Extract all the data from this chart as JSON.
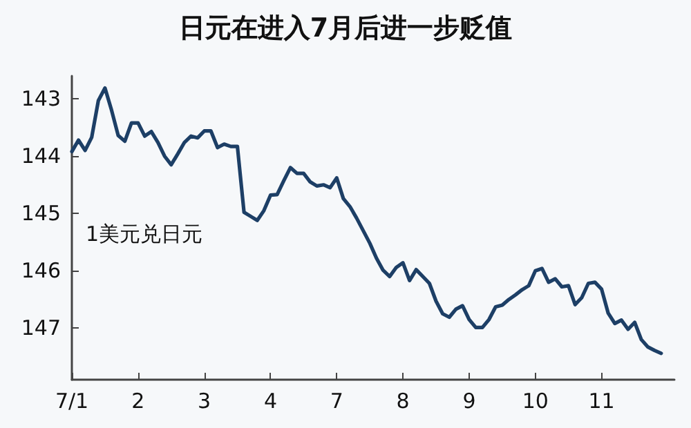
{
  "chart_data": {
    "type": "line",
    "title": "日元在进入7月后进一步贬值",
    "annotations": [
      "1美元兑日元"
    ],
    "categories": [
      "7/1",
      null,
      null,
      null,
      null,
      null,
      null,
      null,
      null,
      null,
      "2",
      null,
      null,
      null,
      null,
      null,
      null,
      null,
      null,
      null,
      "3",
      null,
      null,
      null,
      null,
      null,
      null,
      null,
      null,
      null,
      "4",
      null,
      null,
      null,
      null,
      null,
      null,
      null,
      null,
      null,
      "7",
      null,
      null,
      null,
      null,
      null,
      null,
      null,
      null,
      null,
      "8",
      null,
      null,
      null,
      null,
      null,
      null,
      null,
      null,
      null,
      "9",
      null,
      null,
      null,
      null,
      null,
      null,
      null,
      null,
      null,
      "10",
      null,
      null,
      null,
      null,
      null,
      null,
      null,
      null,
      null,
      "11",
      null,
      null,
      null,
      null,
      null,
      null,
      null,
      null,
      null,
      null,
      null
    ],
    "series": [
      {
        "color": "#1d3f66",
        "values": [
          143.92,
          143.72,
          143.9,
          143.67,
          143.03,
          142.81,
          143.2,
          143.64,
          143.74,
          143.42,
          143.42,
          143.65,
          143.57,
          143.76,
          144.0,
          144.15,
          143.96,
          143.76,
          143.65,
          143.68,
          143.56,
          143.56,
          143.85,
          143.79,
          143.83,
          143.83,
          144.98,
          145.05,
          145.12,
          144.95,
          144.68,
          144.67,
          144.43,
          144.2,
          144.3,
          144.3,
          144.45,
          144.52,
          144.5,
          144.55,
          144.38,
          144.74,
          144.88,
          145.08,
          145.3,
          145.52,
          145.78,
          145.99,
          146.1,
          145.94,
          145.86,
          146.17,
          145.98,
          146.1,
          146.22,
          146.53,
          146.75,
          146.81,
          146.67,
          146.61,
          146.85,
          146.99,
          146.99,
          146.85,
          146.63,
          146.6,
          146.5,
          146.42,
          146.33,
          146.26,
          146.0,
          145.96,
          146.2,
          146.14,
          146.28,
          146.26,
          146.59,
          146.47,
          146.22,
          146.2,
          146.32,
          146.74,
          146.92,
          146.86,
          147.02,
          146.9,
          147.2,
          147.33,
          147.39,
          147.44,
          null,
          null
        ]
      }
    ],
    "ylim": [
      147.9,
      142.6
    ],
    "yticks": [
      143,
      144,
      145,
      146,
      147
    ],
    "grid": false,
    "marker": "none",
    "line_style": "solid"
  }
}
